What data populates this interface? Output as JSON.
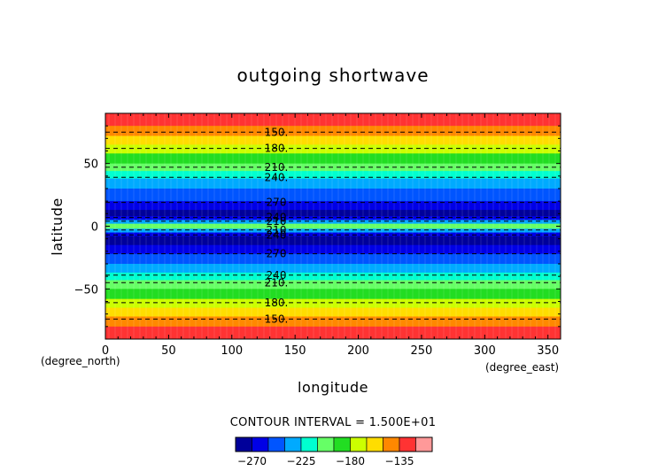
{
  "chart_data": {
    "type": "heatmap",
    "title": "outgoing shortwave",
    "xlabel": "longitude",
    "ylabel": "latitude",
    "x_unit": "(degree_east)",
    "y_unit": "(degree_north)",
    "xlim": [
      0,
      360
    ],
    "ylim": [
      -90,
      90
    ],
    "x_ticks": [
      0,
      50,
      100,
      150,
      200,
      250,
      300,
      350
    ],
    "y_ticks": [
      -50,
      0,
      50
    ],
    "contour_interval_text": "CONTOUR INTERVAL = 1.500E+01",
    "colorbar": {
      "levels": [
        -285,
        -270,
        -255,
        -240,
        -225,
        -210,
        -195,
        -180,
        -165,
        -150,
        -135,
        -120
      ],
      "colors": [
        "#00009a",
        "#0000e6",
        "#0055ff",
        "#00aaff",
        "#00ffd0",
        "#66ff66",
        "#22dd22",
        "#ccff00",
        "#ffdd00",
        "#ff8800",
        "#ff3333",
        "#ff9999"
      ],
      "tick_labels": [
        {
          "value": -270,
          "label": "−270"
        },
        {
          "value": -225,
          "label": "−225"
        },
        {
          "value": -180,
          "label": "−180"
        },
        {
          "value": -135,
          "label": "−135"
        }
      ]
    },
    "zonal_profile": [
      {
        "lat_from": 90,
        "lat_to": 80,
        "value": -125
      },
      {
        "lat_from": 80,
        "lat_to": 72,
        "value": -140
      },
      {
        "lat_from": 72,
        "lat_to": 65,
        "value": -155
      },
      {
        "lat_from": 65,
        "lat_to": 58,
        "value": -170
      },
      {
        "lat_from": 58,
        "lat_to": 50,
        "value": -190
      },
      {
        "lat_from": 50,
        "lat_to": 44,
        "value": -205
      },
      {
        "lat_from": 44,
        "lat_to": 38,
        "value": -220
      },
      {
        "lat_from": 38,
        "lat_to": 30,
        "value": -240
      },
      {
        "lat_from": 30,
        "lat_to": 20,
        "value": -255
      },
      {
        "lat_from": 20,
        "lat_to": 13,
        "value": -270
      },
      {
        "lat_from": 13,
        "lat_to": 8,
        "value": -280
      },
      {
        "lat_from": 8,
        "lat_to": 5,
        "value": -262
      },
      {
        "lat_from": 5,
        "lat_to": 2,
        "value": -235
      },
      {
        "lat_from": 2,
        "lat_to": -2,
        "value": -205
      },
      {
        "lat_from": -2,
        "lat_to": -5,
        "value": -235
      },
      {
        "lat_from": -5,
        "lat_to": -8,
        "value": -262
      },
      {
        "lat_from": -8,
        "lat_to": -15,
        "value": -280
      },
      {
        "lat_from": -15,
        "lat_to": -22,
        "value": -270
      },
      {
        "lat_from": -22,
        "lat_to": -30,
        "value": -255
      },
      {
        "lat_from": -30,
        "lat_to": -37,
        "value": -240
      },
      {
        "lat_from": -37,
        "lat_to": -43,
        "value": -220
      },
      {
        "lat_from": -43,
        "lat_to": -50,
        "value": -205
      },
      {
        "lat_from": -50,
        "lat_to": -58,
        "value": -190
      },
      {
        "lat_from": -58,
        "lat_to": -65,
        "value": -170
      },
      {
        "lat_from": -65,
        "lat_to": -72,
        "value": -155
      },
      {
        "lat_from": -72,
        "lat_to": -80,
        "value": -140
      },
      {
        "lat_from": -80,
        "lat_to": -90,
        "value": -125
      }
    ],
    "contour_lines": [
      {
        "lat": 75,
        "label": "150."
      },
      {
        "lat": 62,
        "label": "180."
      },
      {
        "lat": 47,
        "label": "210."
      },
      {
        "lat": 39,
        "label": "240."
      },
      {
        "lat": 19,
        "label": "270"
      },
      {
        "lat": 7,
        "label": "240"
      },
      {
        "lat": 4,
        "label": "210"
      },
      {
        "lat": -3,
        "label": "210"
      },
      {
        "lat": -7,
        "label": "240"
      },
      {
        "lat": -22,
        "label": "270"
      },
      {
        "lat": -39,
        "label": "240"
      },
      {
        "lat": -45,
        "label": "210."
      },
      {
        "lat": -61,
        "label": "180."
      },
      {
        "lat": -74,
        "label": "150."
      }
    ]
  }
}
